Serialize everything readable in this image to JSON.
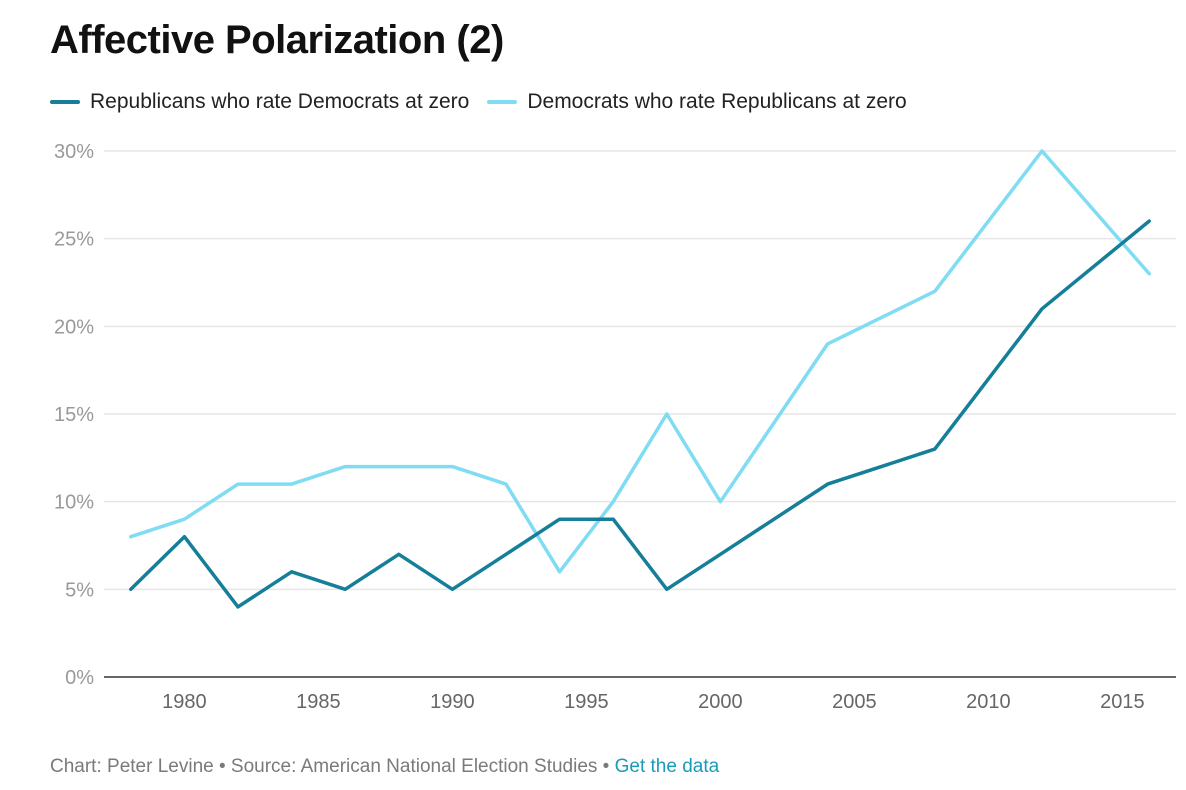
{
  "title": "Affective Polarization (2)",
  "legend": [
    {
      "label": "Republicans who rate Democrats at zero",
      "color": "#157e99"
    },
    {
      "label": "Democrats who rate Republicans at zero",
      "color": "#7fdcf2"
    }
  ],
  "footer": {
    "credit": "Chart: Peter Levine",
    "separator": " • ",
    "source": "Source: American National Election Studies",
    "link_label": "Get the data"
  },
  "chart_data": {
    "type": "line",
    "x": [
      1978,
      1980,
      1982,
      1984,
      1986,
      1988,
      1990,
      1992,
      1994,
      1996,
      1998,
      2000,
      2004,
      2008,
      2012,
      2016
    ],
    "series": [
      {
        "name": "Republicans who rate Democrats at zero",
        "color": "#157e99",
        "values": [
          5,
          8,
          4,
          6,
          5,
          7,
          5,
          7,
          9,
          9,
          5,
          7,
          11,
          13,
          21,
          26
        ]
      },
      {
        "name": "Democrats who rate Republicans at zero",
        "color": "#7fdcf2",
        "values": [
          8,
          9,
          11,
          11,
          12,
          12,
          12,
          11,
          6,
          10,
          15,
          10,
          19,
          22,
          30,
          23
        ]
      }
    ],
    "xlim": [
      1977,
      2017
    ],
    "ylim": [
      0,
      30
    ],
    "x_ticks": [
      1980,
      1985,
      1990,
      1995,
      2000,
      2005,
      2010,
      2015
    ],
    "y_ticks": [
      0,
      5,
      10,
      15,
      20,
      25,
      30
    ],
    "y_tick_labels": [
      "0%",
      "5%",
      "10%",
      "15%",
      "20%",
      "25%",
      "30%"
    ],
    "grid": true,
    "legend_position": "top-left"
  }
}
